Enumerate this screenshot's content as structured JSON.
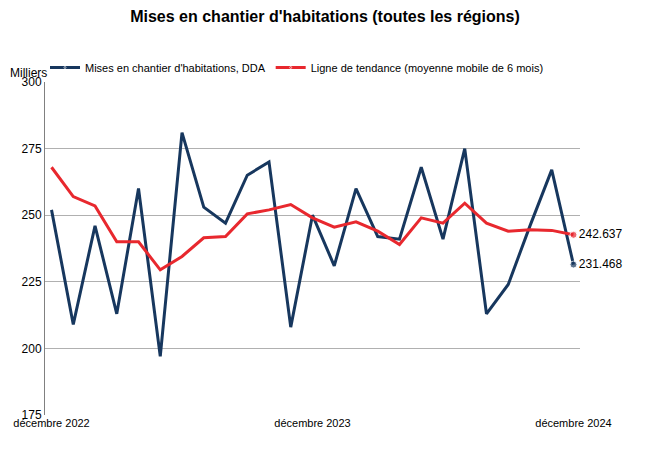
{
  "chart_data": {
    "type": "line",
    "title": "Mises en chantier d'habitations (toutes les régions)",
    "ylabel": "Milliers",
    "categories": [
      "décembre 2022",
      null,
      null,
      null,
      null,
      null,
      null,
      null,
      null,
      null,
      null,
      null,
      "décembre 2023",
      null,
      null,
      null,
      null,
      null,
      null,
      null,
      null,
      null,
      null,
      null,
      "décembre 2024"
    ],
    "series": [
      {
        "name": "Mises en chantier d'habitations, DDA",
        "color": "#17375e",
        "values": [
          252,
          209,
          246,
          213,
          260,
          197,
          281,
          253,
          247,
          265,
          270,
          208,
          250,
          231,
          260,
          242,
          241,
          268,
          241,
          275,
          213,
          224,
          246,
          267,
          231.468
        ],
        "value_labels": [
          null,
          null,
          null,
          null,
          null,
          null,
          null,
          null,
          null,
          null,
          null,
          null,
          null,
          null,
          null,
          null,
          null,
          null,
          null,
          null,
          null,
          null,
          null,
          null,
          "231.468"
        ]
      },
      {
        "name": "Ligne de tendance (moyenne mobile de 6 mois)",
        "color": "#e8282e",
        "values": [
          268,
          257,
          253.5,
          240,
          240,
          229.5,
          234.5,
          241.5,
          242,
          250.5,
          252,
          254,
          249,
          245.5,
          247.5,
          244,
          239,
          249,
          247,
          254.5,
          247,
          244,
          244.5,
          244.3,
          242.637
        ],
        "value_labels": [
          null,
          null,
          null,
          null,
          null,
          null,
          null,
          null,
          null,
          null,
          null,
          null,
          null,
          null,
          null,
          null,
          null,
          null,
          null,
          null,
          null,
          null,
          null,
          null,
          "242.637"
        ]
      }
    ],
    "ylim": [
      175,
      300
    ],
    "yticks": [
      175,
      200,
      225,
      250,
      275,
      300
    ],
    "grid": true,
    "legend": "top"
  }
}
